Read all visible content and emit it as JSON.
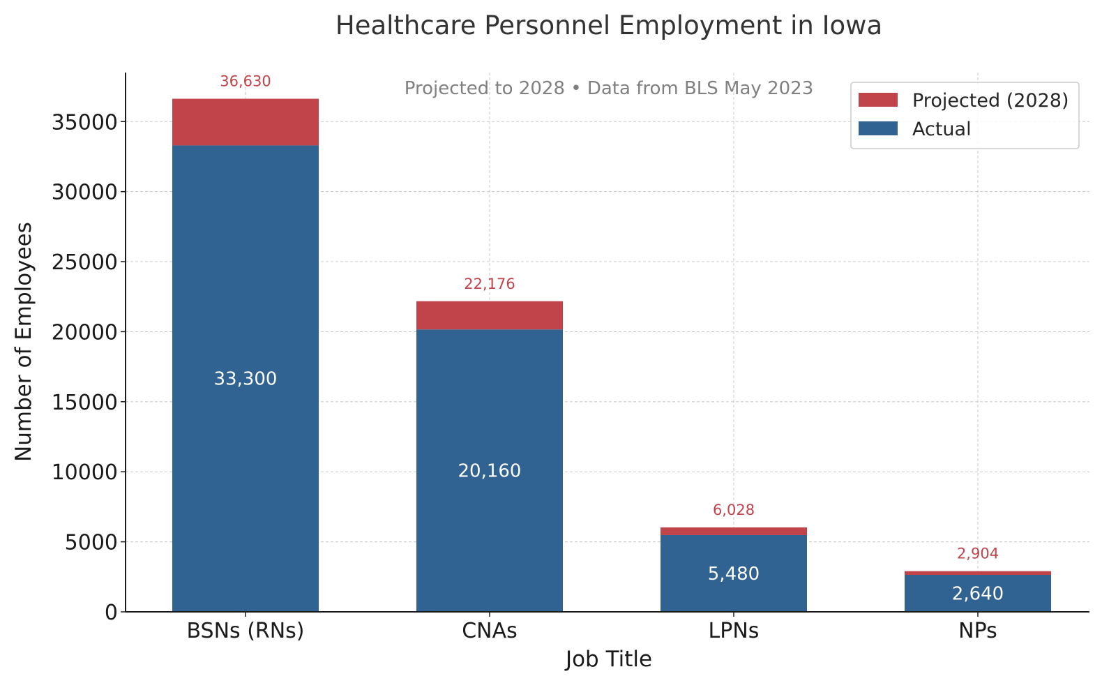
{
  "chart_data": {
    "type": "bar",
    "stacked": true,
    "title": "Healthcare Personnel Employment in Iowa",
    "subtitle": "Projected to 2028 • Data from BLS May 2023",
    "xlabel": "Job Title",
    "ylabel": "Number of Employees",
    "categories": [
      "BSNs (RNs)",
      "CNAs",
      "LPNs",
      "NPs"
    ],
    "series": [
      {
        "name": "Actual",
        "color": "#306392",
        "values": [
          33300,
          20160,
          5480,
          2640
        ],
        "labels": [
          "33,300",
          "20,160",
          "5,480",
          "2,640"
        ]
      },
      {
        "name": "Projected (2028)",
        "color": "#c0444a",
        "totals": [
          36630,
          22176,
          6028,
          2904
        ],
        "labels": [
          "36,630",
          "22,176",
          "6,028",
          "2,904"
        ]
      }
    ],
    "ylim": [
      0,
      38500
    ],
    "yticks": [
      0,
      5000,
      10000,
      15000,
      20000,
      25000,
      30000,
      35000
    ],
    "ytick_labels": [
      "0",
      "5000",
      "10000",
      "15000",
      "20000",
      "25000",
      "30000",
      "35000"
    ],
    "grid": true,
    "legend_position": "top-right",
    "legend_order": [
      "Projected (2028)",
      "Actual"
    ]
  }
}
